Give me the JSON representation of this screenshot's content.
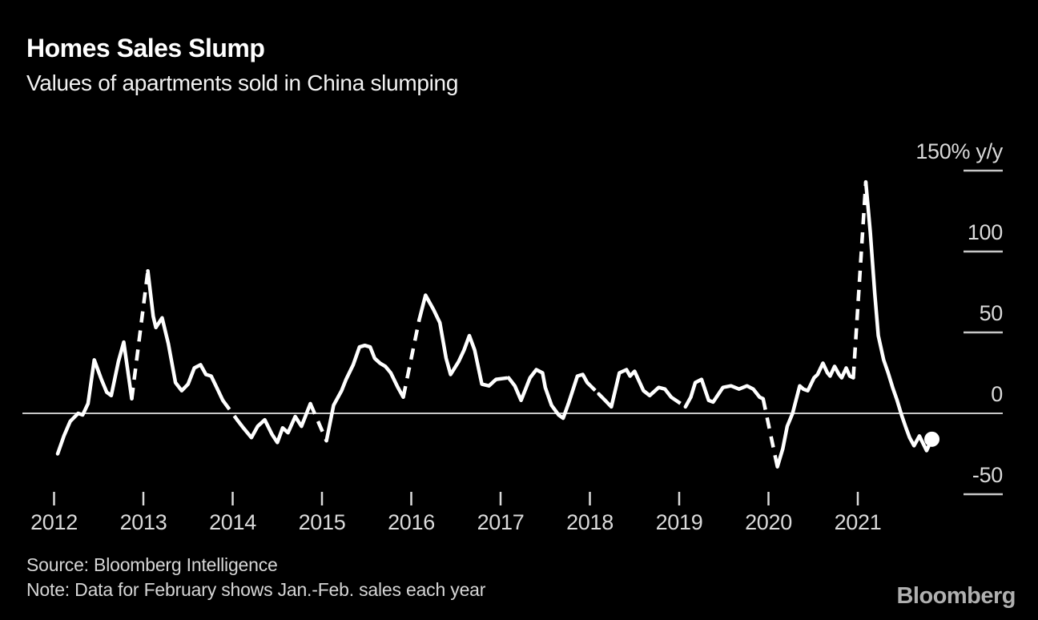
{
  "header": {
    "title": "Homes Sales Slump",
    "subtitle": "Values of apartments sold in China slumping"
  },
  "footer": {
    "source": "Source: Bloomberg Intelligence",
    "note": "Note: Data for February shows Jan.-Feb. sales each year",
    "brand": "Bloomberg"
  },
  "colors": {
    "background": "#000000",
    "line": "#ffffff",
    "zero_line": "#c8c8c8",
    "tick_mark": "#c8c8c8",
    "axis_text": "#dadada"
  },
  "chart_data": {
    "type": "line",
    "title": "Homes Sales Slump",
    "subtitle": "Values of apartments sold in China slumping",
    "unit": "% y/y",
    "legend": "none",
    "grid": "zero line only",
    "line_style_note": "Dashed segments each year connect December to February (February shows Jan.-Feb. combined sales); series ends with a round dot marker",
    "x_axis": {
      "ticks": [
        2012,
        2013,
        2014,
        2015,
        2016,
        2017,
        2018,
        2019,
        2020,
        2021
      ],
      "range": [
        2011.9,
        2022.2
      ]
    },
    "y_axis": {
      "ticks": [
        {
          "value": 150,
          "label": "150% y/y"
        },
        {
          "value": 100,
          "label": "100"
        },
        {
          "value": 50,
          "label": "50"
        },
        {
          "value": 0,
          "label": "0"
        },
        {
          "value": -50,
          "label": "-50"
        }
      ],
      "range": [
        -60,
        160
      ]
    },
    "series": [
      {
        "name": "Value of apartments sold in China, y/y % change",
        "points": [
          [
            2012.04,
            -25,
            0
          ],
          [
            2012.11,
            -14,
            0
          ],
          [
            2012.18,
            -5,
            0
          ],
          [
            2012.27,
            0,
            0
          ],
          [
            2012.32,
            -1,
            0
          ],
          [
            2012.38,
            6,
            0
          ],
          [
            2012.45,
            33,
            0
          ],
          [
            2012.53,
            21,
            0
          ],
          [
            2012.59,
            13,
            0
          ],
          [
            2012.64,
            11,
            0
          ],
          [
            2012.72,
            32,
            0
          ],
          [
            2012.78,
            44,
            0
          ],
          [
            2012.87,
            9,
            0
          ],
          [
            2013.05,
            88,
            1
          ],
          [
            2013.11,
            60,
            0
          ],
          [
            2013.14,
            53,
            0
          ],
          [
            2013.21,
            59,
            0
          ],
          [
            2013.28,
            43,
            0
          ],
          [
            2013.36,
            19,
            0
          ],
          [
            2013.43,
            14,
            0
          ],
          [
            2013.5,
            18,
            0
          ],
          [
            2013.57,
            28,
            0
          ],
          [
            2013.64,
            30,
            0
          ],
          [
            2013.7,
            24,
            0
          ],
          [
            2013.76,
            23,
            0
          ],
          [
            2013.83,
            15,
            0
          ],
          [
            2013.89,
            8,
            0
          ],
          [
            2014.05,
            -4,
            1
          ],
          [
            2014.12,
            -9,
            0
          ],
          [
            2014.21,
            -15,
            0
          ],
          [
            2014.28,
            -8,
            0
          ],
          [
            2014.36,
            -4,
            0
          ],
          [
            2014.44,
            -13,
            0
          ],
          [
            2014.5,
            -18,
            0
          ],
          [
            2014.56,
            -9,
            0
          ],
          [
            2014.62,
            -12,
            0
          ],
          [
            2014.7,
            -2,
            0
          ],
          [
            2014.77,
            -8,
            0
          ],
          [
            2014.87,
            6,
            0
          ],
          [
            2015.05,
            -17,
            1
          ],
          [
            2015.13,
            5,
            0
          ],
          [
            2015.22,
            14,
            0
          ],
          [
            2015.27,
            21,
            0
          ],
          [
            2015.35,
            30,
            0
          ],
          [
            2015.42,
            41,
            0
          ],
          [
            2015.48,
            42,
            0
          ],
          [
            2015.54,
            41,
            0
          ],
          [
            2015.59,
            34,
            0
          ],
          [
            2015.65,
            31,
            0
          ],
          [
            2015.71,
            29,
            0
          ],
          [
            2015.77,
            25,
            0
          ],
          [
            2015.85,
            16,
            0
          ],
          [
            2015.91,
            10,
            0
          ],
          [
            2016.09,
            58,
            1
          ],
          [
            2016.16,
            73,
            0
          ],
          [
            2016.25,
            64,
            0
          ],
          [
            2016.32,
            56,
            0
          ],
          [
            2016.39,
            34,
            0
          ],
          [
            2016.44,
            24,
            0
          ],
          [
            2016.53,
            32,
            0
          ],
          [
            2016.59,
            39,
            0
          ],
          [
            2016.65,
            48,
            0
          ],
          [
            2016.71,
            39,
            0
          ],
          [
            2016.79,
            18,
            0
          ],
          [
            2016.87,
            17,
            0
          ],
          [
            2016.95,
            21,
            0
          ],
          [
            2017.09,
            22,
            1
          ],
          [
            2017.16,
            17,
            0
          ],
          [
            2017.23,
            8,
            0
          ],
          [
            2017.33,
            22,
            0
          ],
          [
            2017.4,
            27,
            0
          ],
          [
            2017.47,
            25,
            0
          ],
          [
            2017.5,
            16,
            0
          ],
          [
            2017.57,
            5,
            0
          ],
          [
            2017.65,
            -1,
            0
          ],
          [
            2017.7,
            -3,
            0
          ],
          [
            2017.76,
            6,
            0
          ],
          [
            2017.86,
            23,
            0
          ],
          [
            2017.92,
            24,
            0
          ],
          [
            2017.97,
            19,
            0
          ],
          [
            2018.1,
            12,
            1
          ],
          [
            2018.17,
            8,
            0
          ],
          [
            2018.24,
            4,
            0
          ],
          [
            2018.33,
            25,
            0
          ],
          [
            2018.41,
            27,
            0
          ],
          [
            2018.45,
            23,
            0
          ],
          [
            2018.5,
            26,
            0
          ],
          [
            2018.6,
            14,
            0
          ],
          [
            2018.67,
            11,
            0
          ],
          [
            2018.77,
            16,
            0
          ],
          [
            2018.84,
            15,
            0
          ],
          [
            2018.91,
            10,
            0
          ],
          [
            2019.07,
            4,
            1
          ],
          [
            2019.13,
            10,
            0
          ],
          [
            2019.18,
            19,
            0
          ],
          [
            2019.25,
            21,
            0
          ],
          [
            2019.33,
            8,
            0
          ],
          [
            2019.38,
            7,
            0
          ],
          [
            2019.49,
            16,
            0
          ],
          [
            2019.58,
            17,
            0
          ],
          [
            2019.67,
            15,
            0
          ],
          [
            2019.76,
            17,
            0
          ],
          [
            2019.83,
            15,
            0
          ],
          [
            2019.9,
            10,
            0
          ],
          [
            2019.94,
            9,
            0
          ],
          [
            2020.1,
            -33,
            1
          ],
          [
            2020.16,
            -22,
            0
          ],
          [
            2020.21,
            -8,
            0
          ],
          [
            2020.27,
            0,
            0
          ],
          [
            2020.35,
            17,
            0
          ],
          [
            2020.39,
            15,
            0
          ],
          [
            2020.44,
            14,
            0
          ],
          [
            2020.51,
            22,
            0
          ],
          [
            2020.55,
            24,
            0
          ],
          [
            2020.61,
            31,
            0
          ],
          [
            2020.66,
            25,
            0
          ],
          [
            2020.69,
            23,
            0
          ],
          [
            2020.74,
            29,
            0
          ],
          [
            2020.79,
            24,
            0
          ],
          [
            2020.82,
            22,
            0
          ],
          [
            2020.87,
            28,
            0
          ],
          [
            2020.91,
            23,
            0
          ],
          [
            2020.95,
            22,
            0
          ],
          [
            2021.09,
            143,
            1
          ],
          [
            2021.14,
            112,
            0
          ],
          [
            2021.19,
            74,
            0
          ],
          [
            2021.23,
            48,
            0
          ],
          [
            2021.29,
            33,
            0
          ],
          [
            2021.34,
            25,
            0
          ],
          [
            2021.39,
            16,
            0
          ],
          [
            2021.44,
            8,
            0
          ],
          [
            2021.49,
            -1,
            0
          ],
          [
            2021.54,
            -9,
            0
          ],
          [
            2021.58,
            -15,
            0
          ],
          [
            2021.63,
            -20,
            0
          ],
          [
            2021.69,
            -14,
            0
          ],
          [
            2021.77,
            -23,
            0
          ],
          [
            2021.83,
            -16,
            0
          ]
        ]
      }
    ]
  }
}
